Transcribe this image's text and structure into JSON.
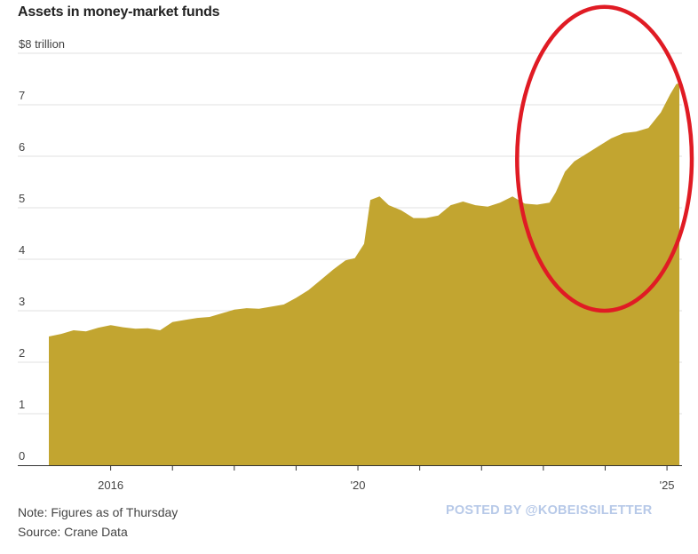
{
  "title": "Assets in money-market funds",
  "notes": {
    "note": "Note: Figures as of Thursday",
    "source": "Source: Crane Data"
  },
  "watermark": "POSTED BY @KOBEISSILETTER",
  "colors": {
    "area": "#c2a530",
    "grid": "#e0e0e0",
    "highlight_ellipse": "#e01b24",
    "watermark": "#b7c9e8"
  },
  "chart_data": {
    "type": "area",
    "title": "Assets in money-market funds",
    "xlabel": "",
    "ylabel": "",
    "unit": "trillion",
    "xlim": [
      2015.0,
      2025.2
    ],
    "ylim": [
      0,
      8
    ],
    "y_ticks": [
      {
        "value": 0,
        "label": "0"
      },
      {
        "value": 1,
        "label": "1"
      },
      {
        "value": 2,
        "label": "2"
      },
      {
        "value": 3,
        "label": "3"
      },
      {
        "value": 4,
        "label": "4"
      },
      {
        "value": 5,
        "label": "5"
      },
      {
        "value": 6,
        "label": "6"
      },
      {
        "value": 7,
        "label": "7"
      },
      {
        "value": 8,
        "label": "$8 trillion"
      }
    ],
    "x_ticks": [
      {
        "value": 2016,
        "label": "2016"
      },
      {
        "value": 2017,
        "label": ""
      },
      {
        "value": 2018,
        "label": ""
      },
      {
        "value": 2019,
        "label": ""
      },
      {
        "value": 2020,
        "label": "'20"
      },
      {
        "value": 2021,
        "label": ""
      },
      {
        "value": 2022,
        "label": ""
      },
      {
        "value": 2023,
        "label": ""
      },
      {
        "value": 2024,
        "label": ""
      },
      {
        "value": 2025,
        "label": "'25"
      }
    ],
    "grid": true,
    "series": [
      {
        "values": [
          [
            2015.0,
            2.5
          ],
          [
            2015.2,
            2.55
          ],
          [
            2015.4,
            2.62
          ],
          [
            2015.6,
            2.6
          ],
          [
            2015.8,
            2.67
          ],
          [
            2016.0,
            2.72
          ],
          [
            2016.2,
            2.68
          ],
          [
            2016.4,
            2.65
          ],
          [
            2016.6,
            2.66
          ],
          [
            2016.8,
            2.62
          ],
          [
            2017.0,
            2.78
          ],
          [
            2017.2,
            2.82
          ],
          [
            2017.4,
            2.86
          ],
          [
            2017.6,
            2.88
          ],
          [
            2017.8,
            2.95
          ],
          [
            2018.0,
            3.02
          ],
          [
            2018.2,
            3.05
          ],
          [
            2018.4,
            3.04
          ],
          [
            2018.6,
            3.08
          ],
          [
            2018.8,
            3.12
          ],
          [
            2019.0,
            3.25
          ],
          [
            2019.2,
            3.4
          ],
          [
            2019.4,
            3.6
          ],
          [
            2019.6,
            3.8
          ],
          [
            2019.8,
            3.98
          ],
          [
            2019.95,
            4.02
          ],
          [
            2020.1,
            4.3
          ],
          [
            2020.2,
            5.15
          ],
          [
            2020.35,
            5.22
          ],
          [
            2020.5,
            5.05
          ],
          [
            2020.7,
            4.95
          ],
          [
            2020.9,
            4.8
          ],
          [
            2021.1,
            4.8
          ],
          [
            2021.3,
            4.85
          ],
          [
            2021.5,
            5.05
          ],
          [
            2021.7,
            5.12
          ],
          [
            2021.9,
            5.05
          ],
          [
            2022.1,
            5.02
          ],
          [
            2022.3,
            5.1
          ],
          [
            2022.5,
            5.22
          ],
          [
            2022.7,
            5.08
          ],
          [
            2022.9,
            5.06
          ],
          [
            2023.1,
            5.1
          ],
          [
            2023.2,
            5.3
          ],
          [
            2023.35,
            5.7
          ],
          [
            2023.5,
            5.9
          ],
          [
            2023.7,
            6.05
          ],
          [
            2023.9,
            6.2
          ],
          [
            2024.1,
            6.35
          ],
          [
            2024.3,
            6.45
          ],
          [
            2024.5,
            6.48
          ],
          [
            2024.7,
            6.55
          ],
          [
            2024.9,
            6.85
          ],
          [
            2025.05,
            7.2
          ],
          [
            2025.15,
            7.4
          ],
          [
            2025.2,
            7.42
          ]
        ]
      }
    ],
    "annotations": [
      {
        "type": "ellipse",
        "color": "#e01b24",
        "x_range": [
          2023.15,
          2025.2
        ],
        "y_range": [
          3.0,
          8.9
        ]
      }
    ]
  }
}
